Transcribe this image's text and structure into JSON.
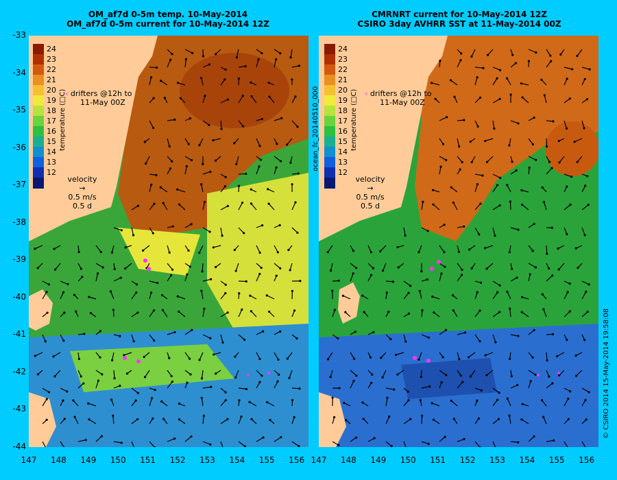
{
  "title_left": [
    "OM_af7d 0-5m temp. 10-May-2014",
    "OM_af7d 0-5m current for 10-May-2014 12Z"
  ],
  "title_right": [
    "CMRNRT current for 10-May-2014 12Z",
    "CSIRO 3day AVHRR SST at 11-May-2014 00Z"
  ],
  "side_label": "ocean_fc_20140510_000",
  "copyright": "© CSIRO 2014  15-May-2014 19:58:08",
  "y_ticks": [
    "-33",
    "-34",
    "-35",
    "-36",
    "-37",
    "-38",
    "-39",
    "-40",
    "-41",
    "-42",
    "-43",
    "-44"
  ],
  "x_ticks": [
    "147",
    "148",
    "149",
    "150",
    "151",
    "152",
    "153",
    "154",
    "155",
    "156"
  ],
  "colorbar": {
    "labels": [
      "24",
      "23",
      "22",
      "21",
      "20",
      "19",
      "18",
      "17",
      "16",
      "15",
      "14",
      "13",
      "12"
    ],
    "title": "temperature (□C)",
    "colors": [
      "#8a1a00",
      "#b03000",
      "#d25a10",
      "#e89020",
      "#f6c030",
      "#f0ea3a",
      "#b8e23c",
      "#6ad43c",
      "#2ec040",
      "#18b090",
      "#1090d0",
      "#1060e0",
      "#1030b0",
      "#0a1870"
    ]
  },
  "legend": {
    "drifters": [
      "drifters @12h to",
      "11-May 00Z"
    ],
    "velocity": "velocity",
    "speed": "0.5 m/s",
    "time": "0.5 d"
  },
  "colors": {
    "background": "#00ccff",
    "land": "#ffcc99",
    "drifter": "#ff33ff"
  }
}
